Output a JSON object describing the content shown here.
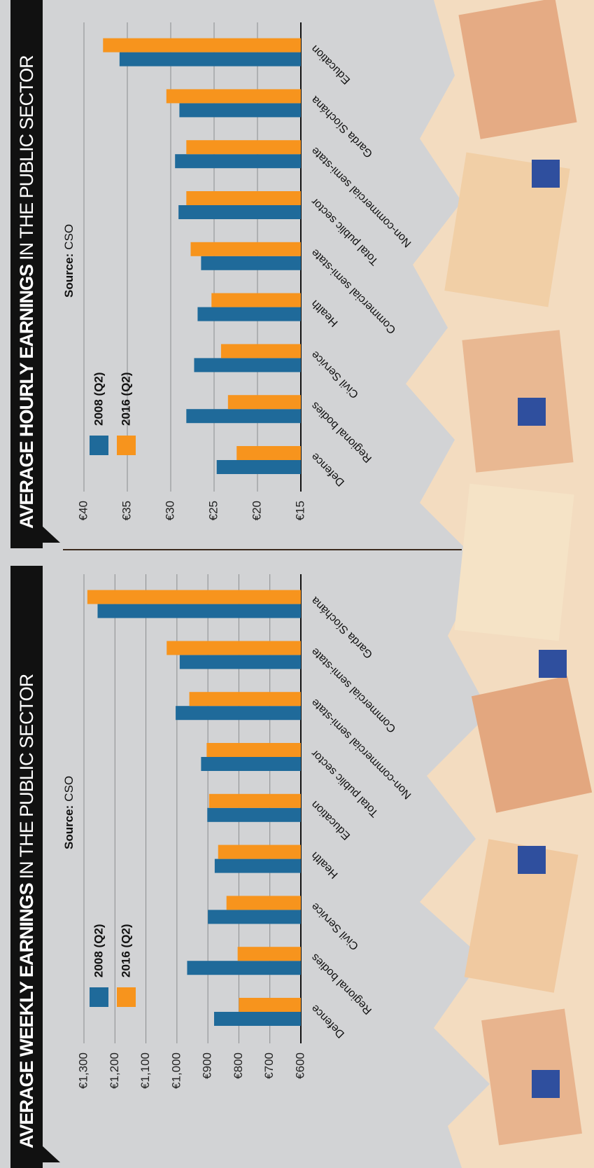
{
  "chart_data": [
    {
      "type": "bar",
      "title_parts": [
        "AVERAGE WEEKLY EARNINGS",
        "IN THE PUBLIC SECTOR"
      ],
      "source_parts": [
        "Source:",
        "CSO"
      ],
      "categories": [
        "Defence",
        "Regional bodies",
        "Civil Service",
        "Health",
        "Education",
        "Total public sector",
        "Non-commercial semi-state",
        "Commercial semi-state",
        "Garda Síochána"
      ],
      "series": [
        {
          "name": "2008 (Q2)",
          "color": "#1f6a9a",
          "values": [
            880,
            967,
            900,
            878,
            902,
            922,
            1004,
            991,
            1256
          ]
        },
        {
          "name": "2016 (Q2)",
          "color": "#f7941d",
          "values": [
            800,
            804,
            840,
            867,
            896,
            904,
            960,
            1033,
            1289
          ]
        }
      ],
      "ylim": [
        600,
        1300
      ],
      "yticks": [
        {
          "value": 600,
          "label": "€600"
        },
        {
          "value": 700,
          "label": "€700"
        },
        {
          "value": 800,
          "label": "€800"
        },
        {
          "value": 900,
          "label": "€900"
        },
        {
          "value": 1000,
          "label": "€1,000"
        },
        {
          "value": 1100,
          "label": "€1,100"
        },
        {
          "value": 1200,
          "label": "€1,200"
        },
        {
          "value": 1300,
          "label": "€1,300"
        }
      ],
      "grid": true
    },
    {
      "type": "bar",
      "title_parts": [
        "AVERAGE HOURLY EARNINGS",
        "IN THE PUBLIC SECTOR"
      ],
      "source_parts": [
        "Source:",
        "CSO"
      ],
      "categories": [
        "Defence",
        "Regional bodies",
        "Civil Service",
        "Health",
        "Commercial semi-state",
        "Total public sector",
        "Non-commercial semi-state",
        "Garda Síochána",
        "Education"
      ],
      "series": [
        {
          "name": "2008 (Q2)",
          "color": "#1f6a9a",
          "values": [
            24.7,
            28.2,
            27.3,
            26.9,
            26.5,
            29.1,
            29.5,
            29.0,
            35.9
          ]
        },
        {
          "name": "2016 (Q2)",
          "color": "#f7941d",
          "values": [
            22.4,
            23.4,
            24.2,
            25.3,
            27.7,
            28.2,
            28.2,
            30.5,
            37.8
          ]
        }
      ],
      "ylim": [
        15,
        40
      ],
      "yticks": [
        {
          "value": 15,
          "label": "€15"
        },
        {
          "value": 20,
          "label": "€20"
        },
        {
          "value": 25,
          "label": "€25"
        },
        {
          "value": 30,
          "label": "€30"
        },
        {
          "value": 35,
          "label": "€35"
        },
        {
          "value": 40,
          "label": "€40"
        }
      ],
      "grid": true
    }
  ]
}
